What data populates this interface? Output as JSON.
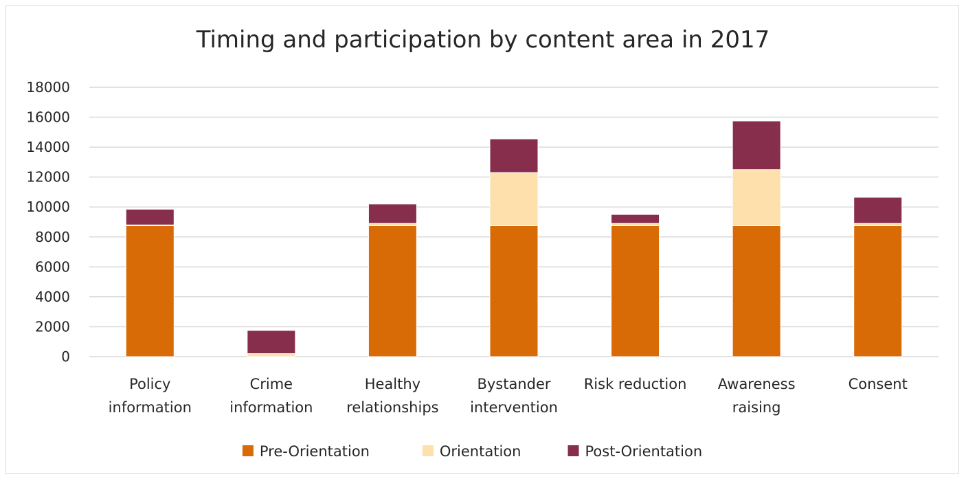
{
  "chart_data": {
    "type": "bar",
    "stacked": true,
    "title": "Timing and participation by content area in 2017",
    "categories": [
      [
        "Policy",
        "information"
      ],
      [
        "Crime",
        "information"
      ],
      [
        "Healthy",
        "relationships"
      ],
      [
        "Bystander",
        "intervention"
      ],
      [
        "Risk reduction"
      ],
      [
        "Awareness",
        "raising"
      ],
      [
        "Consent"
      ]
    ],
    "series": [
      {
        "name": "Pre-Orientation",
        "color": "#d96b07",
        "values": [
          8750,
          0,
          8750,
          8750,
          8750,
          8750,
          8750
        ]
      },
      {
        "name": "Orientation",
        "color": "#fde0ab",
        "values": [
          50,
          200,
          150,
          3550,
          150,
          3750,
          150
        ]
      },
      {
        "name": "Post-Orientation",
        "color": "#862e4b",
        "values": [
          1050,
          1550,
          1300,
          2250,
          600,
          3250,
          1750
        ]
      }
    ],
    "ylim": [
      0,
      18000
    ],
    "yticks": [
      0,
      2000,
      4000,
      6000,
      8000,
      10000,
      12000,
      14000,
      16000,
      18000
    ],
    "grid": true,
    "legend": "bottom"
  }
}
